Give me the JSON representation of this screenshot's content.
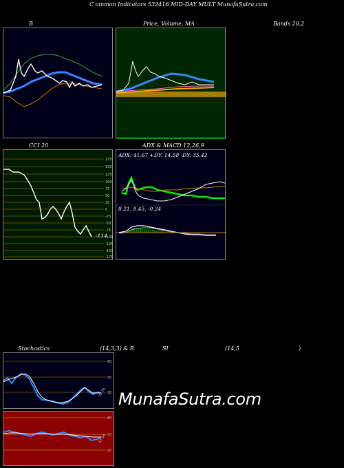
{
  "header": {
    "title": "C ommon  Indicators 532416  MID-DAY MULT MunafaSutra.com"
  },
  "panels": {
    "bands": {
      "label_left": "B",
      "label_right": "Bands 20,2"
    },
    "price": {
      "label": "Price,  Volume,  MA",
      "overlay": "Price, Volume, MA"
    },
    "cci": {
      "label": "CCI 20",
      "value": "-114",
      "ticks": [
        "175",
        "150",
        "125",
        "100",
        "75",
        "50",
        "25",
        "0",
        "-25",
        "-50",
        "-75",
        "-100",
        "-125",
        "-150",
        "-175"
      ]
    },
    "adx": {
      "label": "ADX  & MACD 12,26,9",
      "adx_readout": "ADX: 41.67  +DY: 14.58  -DY: 35.42",
      "macd_readout": "8.21,  8.45,  -0.24"
    },
    "stoch": {
      "label_left": "Stochastics",
      "label_mid": "(14,3,3) & R",
      "label_si": "SI",
      "label_paren": "(14,5",
      "label_close": ")",
      "ticks": [
        "80",
        "50",
        "20"
      ],
      "value": "72.76"
    },
    "rsi": {
      "ticks": [
        "80",
        "50",
        "20"
      ],
      "value": "51.04"
    }
  },
  "watermark": "MunafaSutra.com",
  "colors": {
    "bands_bg": "#00001a",
    "price_bg": "#002800",
    "cci_bg": "#001a00",
    "adx_bg": "#000018",
    "stoch_bg": "#000018",
    "rsi_bg": "#8b0000"
  }
}
